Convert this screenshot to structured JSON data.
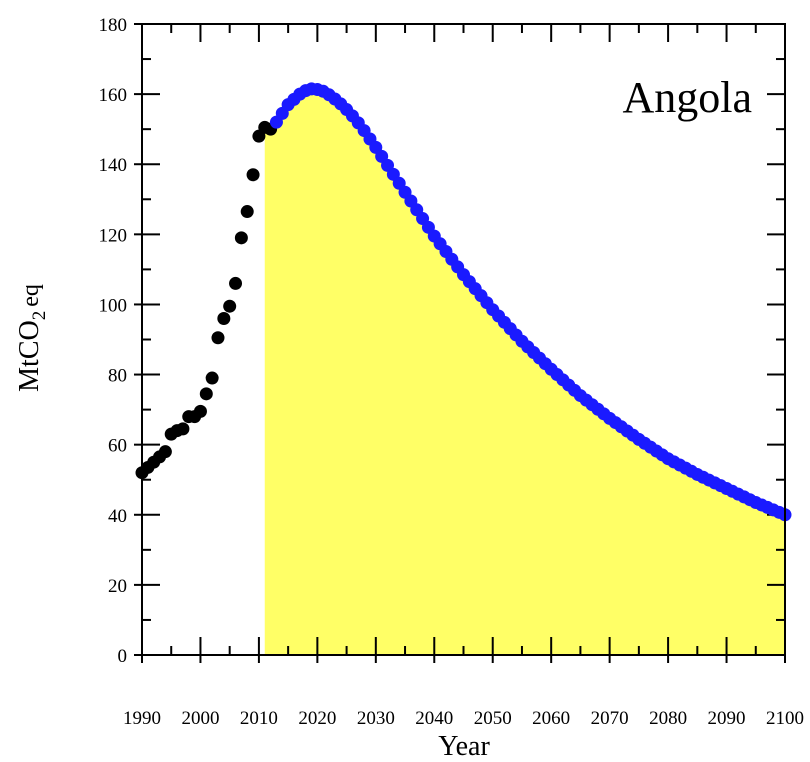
{
  "chart_data": {
    "type": "scatter",
    "label": "Angola",
    "xlabel": "Year",
    "ylabel": {
      "main": "MtCO",
      "sub": "2",
      "suffix": "eq"
    },
    "xlim": [
      1990,
      2100
    ],
    "ylim": [
      0,
      180
    ],
    "xticks": [
      1990,
      2000,
      2010,
      2020,
      2030,
      2040,
      2050,
      2060,
      2070,
      2080,
      2090,
      2100
    ],
    "yticks": [
      0,
      20,
      40,
      60,
      80,
      100,
      120,
      140,
      160,
      180
    ],
    "grid": false,
    "series": [
      {
        "role": "historical",
        "color": "#000000",
        "x": [
          1990,
          1991,
          1992,
          1993,
          1994,
          1995,
          1996,
          1997,
          1998,
          1999,
          2000,
          2001,
          2002,
          2003,
          2004,
          2005,
          2006,
          2007,
          2008,
          2009,
          2010,
          2011,
          2012
        ],
        "y": [
          52,
          53.5,
          55,
          56.5,
          58,
          63,
          64,
          64.5,
          68,
          68,
          69.5,
          74.5,
          79,
          90.5,
          96,
          99.5,
          106,
          119,
          126.5,
          137,
          148,
          150.5,
          150
        ]
      },
      {
        "role": "projection",
        "color": "#1a1aff",
        "x": [
          2013,
          2014,
          2015,
          2016,
          2017,
          2018,
          2019,
          2020,
          2021,
          2022,
          2023,
          2024,
          2025,
          2026,
          2027,
          2028,
          2029,
          2030,
          2035,
          2040,
          2045,
          2050,
          2055,
          2060,
          2065,
          2070,
          2075,
          2080,
          2085,
          2090,
          2095,
          2100
        ],
        "y": [
          152,
          154.5,
          157,
          158.5,
          160,
          161,
          161.5,
          161.3,
          160.8,
          159.8,
          158.6,
          157.2,
          155.6,
          153.8,
          151.8,
          149.6,
          147.2,
          144.8,
          132,
          119.5,
          108.5,
          98.5,
          89.5,
          81.5,
          74,
          67.5,
          61.5,
          56,
          51.5,
          47.5,
          43.5,
          40
        ]
      }
    ],
    "shaded_region": {
      "color": "#ffff66",
      "x_start": 2011,
      "x_end": 2100
    }
  }
}
